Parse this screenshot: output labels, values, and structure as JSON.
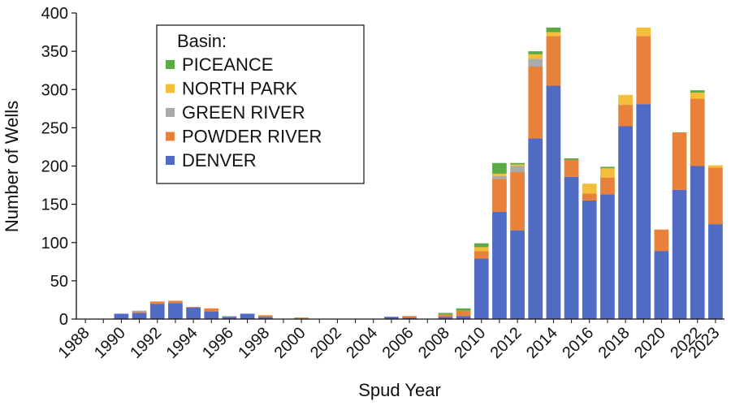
{
  "chart_data": {
    "type": "bar",
    "stacked": true,
    "xlabel": "Spud Year",
    "ylabel": "Number of Wells",
    "ylim": [
      0,
      400
    ],
    "yticks": [
      0,
      50,
      100,
      150,
      200,
      250,
      300,
      350,
      400
    ],
    "legend_title": "Basin:",
    "legend_position": "top-left",
    "grid": false,
    "categories": [
      1988,
      1989,
      1990,
      1991,
      1992,
      1993,
      1994,
      1995,
      1996,
      1997,
      1998,
      1999,
      2000,
      2001,
      2002,
      2003,
      2004,
      2005,
      2006,
      2007,
      2008,
      2009,
      2010,
      2011,
      2012,
      2013,
      2014,
      2015,
      2016,
      2017,
      2018,
      2019,
      2020,
      2021,
      2022,
      2023
    ],
    "xticklabels": [
      "1988",
      "1990",
      "1992",
      "1994",
      "1996",
      "1998",
      "2000",
      "2002",
      "2004",
      "2006",
      "2008",
      "2010",
      "2012",
      "2014",
      "2016",
      "2018",
      "2020",
      "2022",
      "2023"
    ],
    "series": [
      {
        "name": "DENVER",
        "color": "#4f6bc4",
        "values": [
          0,
          0,
          7,
          8,
          20,
          21,
          15,
          10,
          3,
          7,
          3,
          0,
          0,
          0,
          0,
          0,
          0,
          3,
          2,
          0,
          3,
          4,
          79,
          140,
          116,
          236,
          305,
          186,
          155,
          163,
          252,
          281,
          89,
          169,
          200,
          124
        ]
      },
      {
        "name": "POWDER RIVER",
        "color": "#e8813a",
        "values": [
          0,
          0,
          0,
          1,
          3,
          3,
          1,
          4,
          0,
          0,
          2,
          0,
          2,
          0,
          0,
          0,
          0,
          0,
          2,
          0,
          3,
          7,
          10,
          43,
          76,
          94,
          65,
          22,
          9,
          22,
          28,
          89,
          28,
          75,
          88,
          74
        ]
      },
      {
        "name": "GREEN RIVER",
        "color": "#aaaaaa",
        "values": [
          0,
          0,
          0,
          2,
          0,
          0,
          0,
          0,
          1,
          0,
          0,
          0,
          0,
          0,
          0,
          0,
          0,
          0,
          0,
          0,
          0,
          0,
          0,
          4,
          8,
          10,
          0,
          0,
          0,
          0,
          0,
          0,
          0,
          0,
          0,
          0
        ]
      },
      {
        "name": "NORTH PARK",
        "color": "#f5be3a",
        "values": [
          0,
          0,
          0,
          0,
          0,
          0,
          0,
          0,
          0,
          0,
          0,
          0,
          0,
          0,
          0,
          0,
          0,
          0,
          0,
          0,
          0,
          0,
          5,
          3,
          2,
          6,
          5,
          0,
          13,
          12,
          13,
          11,
          0,
          0,
          8,
          3
        ]
      },
      {
        "name": "PICEANCE",
        "color": "#5aab46",
        "values": [
          0,
          0,
          0,
          0,
          0,
          0,
          0,
          0,
          0,
          0,
          0,
          0,
          0,
          0,
          0,
          0,
          0,
          0,
          0,
          0,
          2,
          3,
          5,
          14,
          2,
          4,
          6,
          2,
          0,
          2,
          0,
          0,
          0,
          0,
          3,
          0
        ]
      }
    ]
  }
}
